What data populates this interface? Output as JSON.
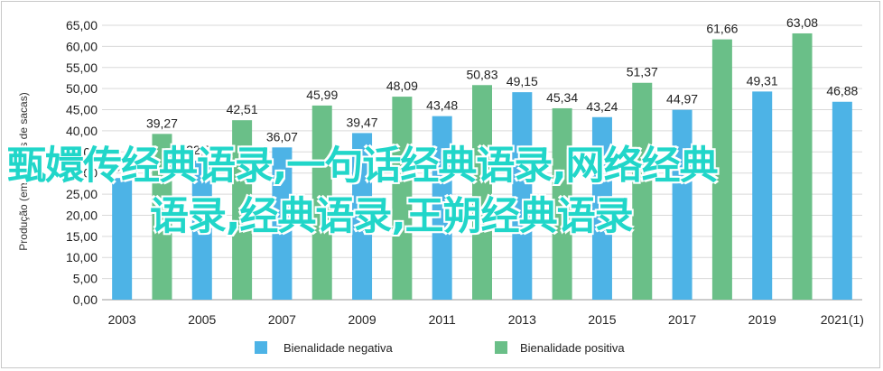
{
  "chart_data": {
    "type": "bar",
    "ylabel": "Produção (em milhões de sacas)",
    "ylim": [
      0,
      65
    ],
    "ytick_step": 5,
    "ytick_labels": [
      "0,00",
      "5,00",
      "10,00",
      "15,00",
      "20,00",
      "25,00",
      "30,00",
      "35,00",
      "40,00",
      "45,00",
      "50,00",
      "55,00",
      "60,00",
      "65,00"
    ],
    "x_tick_labels": [
      "2003",
      "2005",
      "2007",
      "2009",
      "2011",
      "2013",
      "2015",
      "2017",
      "2019",
      "2021(1)"
    ],
    "grid": true,
    "legend_position": "bottom",
    "series": [
      {
        "name": "Bienalidade negativa",
        "color": "#4db3e6",
        "values": [
          28.82,
          32.94,
          36.07,
          39.47,
          43.48,
          49.15,
          43.24,
          44.97,
          49.31,
          46.88
        ],
        "labels": [
          "28,82",
          "32,94",
          "36,07",
          "39,47",
          "43,48",
          "49,15",
          "43,24",
          "44,97",
          "49,31",
          "46,88"
        ]
      },
      {
        "name": "Bienalidade positiva",
        "color": "#6abf88",
        "values": [
          39.27,
          42.51,
          45.99,
          48.09,
          50.83,
          45.34,
          51.37,
          61.66,
          63.08
        ],
        "labels": [
          "39,27",
          "42,51",
          "45,99",
          "48,09",
          "50,83",
          "45,34",
          "51,37",
          "61,66",
          "63,08"
        ]
      }
    ]
  },
  "overlay_text": {
    "line1": "甄嬛传经典语录,一句话经典语录,网络经典",
    "line2": "语录,经典语录,王朔经典语录"
  }
}
